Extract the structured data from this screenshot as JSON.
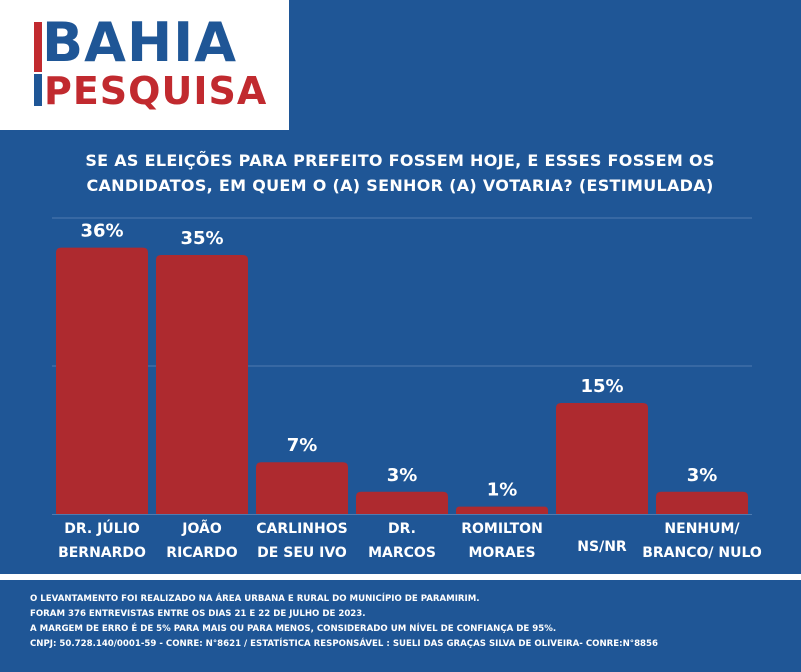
{
  "logo": {
    "line1": "BAHIA",
    "line2": "PESQUISA"
  },
  "question": {
    "line1": "SE AS ELEIÇÕES PARA PREFEITO FOSSEM HOJE, E ESSES FOSSEM OS",
    "line2": "CANDIDATOS, EM QUEM O (A) SENHOR (A) VOTARIA? (ESTIMULADA)"
  },
  "colors": {
    "background": "#1f5696",
    "bar": "#ae2a2f",
    "brand_red": "#c12a2f",
    "text": "#ffffff"
  },
  "chart_data": {
    "type": "bar",
    "categories": [
      [
        "DR. JÚLIO",
        "BERNARDO"
      ],
      [
        "JOÃO",
        "RICARDO"
      ],
      [
        "CARLINHOS",
        "DE SEU IVO"
      ],
      [
        "DR.",
        "MARCOS"
      ],
      [
        "ROMILTON",
        "MORAES"
      ],
      [
        "NS/NR"
      ],
      [
        "NENHUM/",
        "BRANCO/ NULO"
      ]
    ],
    "values": [
      36,
      35,
      7,
      3,
      1,
      15,
      3
    ],
    "labels": [
      "36%",
      "35%",
      "7%",
      "3%",
      "1%",
      "15%",
      "3%"
    ],
    "ylim": [
      0,
      40
    ],
    "grid": true
  },
  "footer": {
    "line1": "O LEVANTAMENTO FOI REALIZADO NA ÁREA URBANA E RURAL DO MUNICÍPIO DE PARAMIRIM.",
    "line2": "FORAM 376 ENTREVISTAS ENTRE OS DIAS 21 E 22 DE JULHO DE 2023.",
    "line3": "A MARGEM DE ERRO É DE 5% PARA MAIS OU PARA MENOS, CONSIDERADO UM NÍVEL DE CONFIANÇA DE 95%.",
    "line4": "CNPJ: 50.728.140/0001-59 - CONRE: N°8621 / ESTATÍSTICA RESPONSÁVEL : SUELI DAS GRAÇAS SILVA DE OLIVEIRA- CONRE:N°8856"
  }
}
